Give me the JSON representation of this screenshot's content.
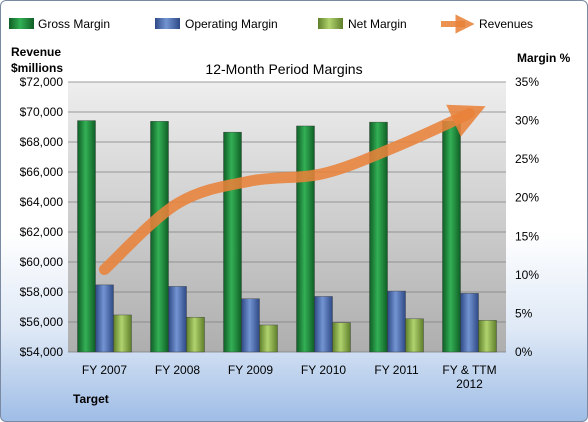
{
  "chart_data": {
    "type": "bar",
    "title": "12-Month Period Margins",
    "categories": [
      "FY 2007",
      "FY 2008",
      "FY 2009",
      "FY 2010",
      "FY 2011",
      "FY & TTM 2012"
    ],
    "y_left": {
      "label_line1": "Revenue",
      "label_line2": "$millions",
      "ylim": [
        54000,
        72000
      ],
      "ticks": [
        "$54,000",
        "$56,000",
        "$58,000",
        "$60,000",
        "$62,000",
        "$64,000",
        "$66,000",
        "$68,000",
        "$70,000",
        "$72,000"
      ]
    },
    "y_right": {
      "label": "Margin %",
      "ylim": [
        0,
        35
      ],
      "ticks": [
        "0%",
        "5%",
        "10%",
        "15%",
        "20%",
        "25%",
        "30%",
        "35%"
      ]
    },
    "series": [
      {
        "name": "Gross Margin",
        "type": "bar",
        "axis": "right",
        "color": "#1e8a3c",
        "values": [
          30.0,
          29.9,
          28.5,
          29.3,
          29.8,
          29.9
        ]
      },
      {
        "name": "Operating Margin",
        "type": "bar",
        "axis": "right",
        "color": "#4f6fb0",
        "values": [
          8.7,
          8.5,
          6.9,
          7.2,
          7.9,
          7.6
        ]
      },
      {
        "name": "Net Margin",
        "type": "bar",
        "axis": "right",
        "color": "#8db24a",
        "values": [
          4.8,
          4.5,
          3.5,
          3.8,
          4.3,
          4.1
        ]
      },
      {
        "name": "Revenues",
        "type": "line",
        "axis": "left",
        "color": "#e8823a",
        "values": [
          59500,
          63900,
          65400,
          65900,
          67700,
          69900
        ]
      }
    ],
    "grid": true,
    "legend": "top",
    "footer_label": "Target"
  }
}
